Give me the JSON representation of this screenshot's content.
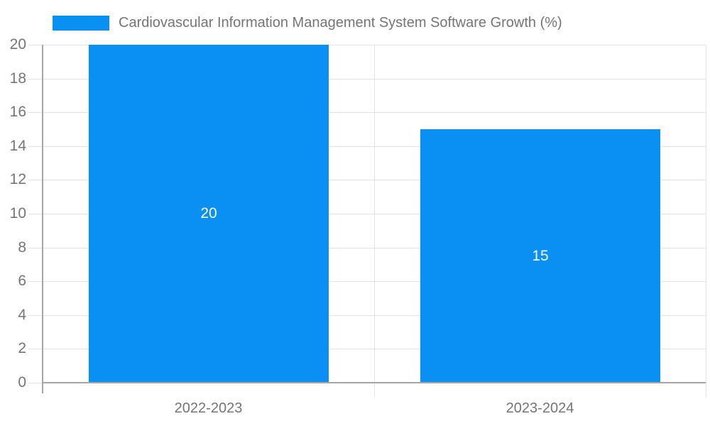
{
  "chart_data": {
    "type": "bar",
    "title": "Cardiovascular Information Management System Software Growth (%)",
    "legend": [
      "Cardiovascular Information Management System Software Growth (%)"
    ],
    "legend_position": "top-left",
    "categories": [
      "2022-2023",
      "2023-2024"
    ],
    "values": [
      20,
      15
    ],
    "bar_value_labels": [
      "20",
      "15"
    ],
    "xlabel": "",
    "ylabel": "",
    "ylim": [
      0,
      20
    ],
    "ytick_step": 2,
    "ytick_labels": [
      "0",
      "2",
      "4",
      "6",
      "8",
      "10",
      "12",
      "14",
      "16",
      "18",
      "20"
    ],
    "grid": true,
    "colors": {
      "bar": "#0990f2",
      "grid_line": "#e2e2e2",
      "axis_line": "#a6a6a6",
      "axis_label_text": "#757575",
      "legend_text": "#757575",
      "bar_label_text": "#ffffff",
      "background": "#ffffff"
    }
  }
}
